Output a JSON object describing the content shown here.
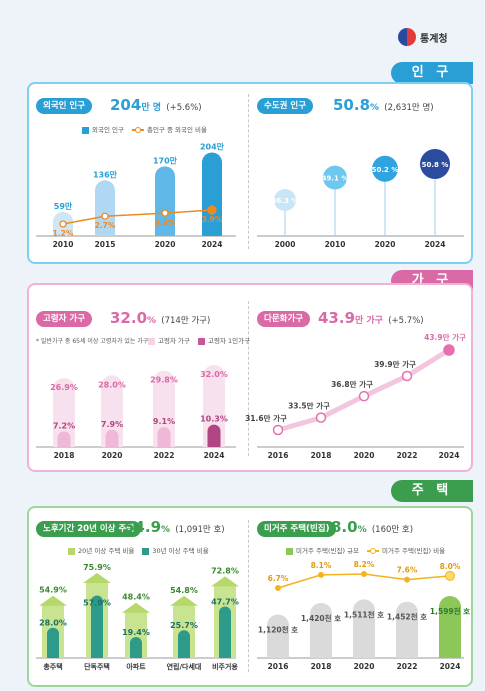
{
  "org": {
    "name": "통계청"
  },
  "colors": {
    "population": "#2a9fd6",
    "households": "#d96aa6",
    "housing": "#3a9e4e",
    "navy": "#2b4c9e",
    "pink_dark": "#b04684"
  },
  "sections": {
    "population": {
      "tag": "인 구"
    },
    "households": {
      "tag": "가 구"
    },
    "housing": {
      "tag": "주 택"
    }
  },
  "foreign_pop": {
    "pill": "외국인 인구",
    "value": "204",
    "unit": "만 명",
    "sub": "(+5.6%)",
    "legend_bar": "외국인 인구",
    "legend_line": "총인구 중 외국인 비율"
  },
  "capital_area": {
    "pill": "수도권 인구",
    "value": "50.8",
    "unit": "%",
    "sub": "(2,631만 명)"
  },
  "elderly": {
    "pill": "고령자 가구",
    "value": "32.0",
    "unit": "%",
    "sub": "(714만 가구)",
    "note": "* 일반가구 중 65세 이상 고령자가 있는 가구",
    "legend_a": "고령자 가구",
    "legend_b": "고령자 1인가구"
  },
  "multicultural": {
    "pill": "다문화가구",
    "value": "43.9",
    "unit": "만 가구",
    "sub": "(+5.7%)"
  },
  "old_housing": {
    "pill": "노후기간 20년 이상 주택",
    "value": "54.9",
    "unit": "%",
    "sub": "(1,091만 호)",
    "legend_a": "20년 이상 주택 비율",
    "legend_b": "30년 이상 주택 비율"
  },
  "vacant": {
    "pill": "미거주 주택(빈집)",
    "value": "8.0",
    "unit": "%",
    "sub": "(160만 호)",
    "legend_bar": "미거주 주택(빈집) 규모",
    "legend_line": "미거주 주택(빈집) 비율"
  },
  "chart_data": [
    {
      "id": "foreign_pop",
      "type": "bar",
      "categories": [
        "2010",
        "2015",
        "2020",
        "2024"
      ],
      "series": [
        {
          "name": "외국인 인구",
          "values": [
            59,
            136,
            170,
            204
          ],
          "labels": [
            "59만",
            "136만",
            "170만",
            "204만"
          ]
        },
        {
          "name": "총인구 중 외국인 비율",
          "type": "line",
          "values": [
            1.2,
            2.7,
            3.3,
            3.9
          ],
          "labels": [
            "1.2%",
            "2.7%",
            "3.3%",
            "3.9%"
          ]
        }
      ]
    },
    {
      "id": "capital_area",
      "type": "bubble",
      "categories": [
        "2000",
        "2010",
        "2020",
        "2024"
      ],
      "values": [
        46.3,
        49.1,
        50.2,
        50.8
      ],
      "labels": [
        "46.3 %",
        "49.1 %",
        "50.2 %",
        "50.8 %"
      ]
    },
    {
      "id": "elderly",
      "type": "bar",
      "categories": [
        "2018",
        "2020",
        "2022",
        "2024"
      ],
      "series": [
        {
          "name": "고령자 가구",
          "values": [
            26.9,
            28.0,
            29.8,
            32.0
          ],
          "labels": [
            "26.9%",
            "28.0%",
            "29.8%",
            "32.0%"
          ]
        },
        {
          "name": "고령자 1인가구",
          "values": [
            7.2,
            7.9,
            9.1,
            10.3
          ],
          "labels": [
            "7.2%",
            "7.9%",
            "9.1%",
            "10.3%"
          ]
        }
      ]
    },
    {
      "id": "multicultural",
      "type": "line",
      "categories": [
        "2016",
        "2018",
        "2020",
        "2022",
        "2024"
      ],
      "values": [
        31.6,
        33.5,
        36.8,
        39.9,
        43.9
      ],
      "labels": [
        "31.6만 가구",
        "33.5만 가구",
        "36.8만 가구",
        "39.9만 가구",
        "43.9만 가구"
      ]
    },
    {
      "id": "old_housing",
      "type": "bar",
      "categories": [
        "총주택",
        "단독주택",
        "아파트",
        "연립/다세대",
        "비주거용"
      ],
      "series": [
        {
          "name": "20년 이상 주택 비율",
          "values": [
            54.9,
            75.9,
            48.4,
            54.8,
            72.8
          ],
          "labels": [
            "54.9%",
            "75.9%",
            "48.4%",
            "54.8%",
            "72.8%"
          ]
        },
        {
          "name": "30년 이상 주택 비율",
          "values": [
            28.0,
            57.9,
            19.4,
            25.7,
            47.7
          ],
          "labels": [
            "28.0%",
            "57.9%",
            "19.4%",
            "25.7%",
            "47.7%"
          ]
        }
      ]
    },
    {
      "id": "vacant",
      "type": "bar",
      "categories": [
        "2016",
        "2018",
        "2020",
        "2022",
        "2024"
      ],
      "series": [
        {
          "name": "미거주 주택(빈집) 규모",
          "values": [
            1120,
            1420,
            1511,
            1452,
            1599
          ],
          "labels": [
            "1,120천 호",
            "1,420천 호",
            "1,511천 호",
            "1,452천 호",
            "1,599천 호"
          ]
        },
        {
          "name": "미거주 주택(빈집) 비율",
          "type": "line",
          "values": [
            6.7,
            8.1,
            8.2,
            7.6,
            8.0
          ],
          "labels": [
            "6.7%",
            "8.1%",
            "8.2%",
            "7.6%",
            "8.0%"
          ]
        }
      ]
    }
  ]
}
